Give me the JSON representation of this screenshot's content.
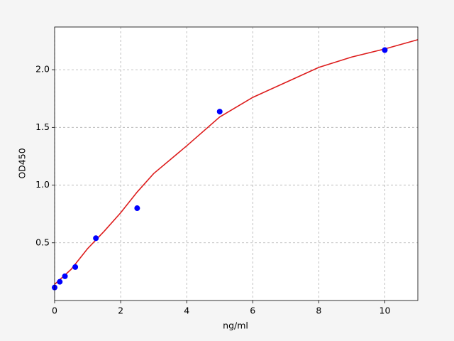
{
  "chart_data": {
    "type": "scatter",
    "xlabel": "ng/ml",
    "ylabel": "OD450",
    "xlim": [
      0,
      11
    ],
    "ylim": [
      0.0,
      2.37
    ],
    "xticks": [
      0,
      2,
      4,
      6,
      8,
      10
    ],
    "yticks": [
      0.5,
      {
        "value": 1.0,
        "label": "1.0"
      },
      1.5,
      {
        "value": 2.0,
        "label": "2.0"
      }
    ],
    "grid": true,
    "series": [
      {
        "type": "scatter",
        "color": "#0000ff",
        "x": [
          0,
          0.156,
          0.3125,
          0.625,
          1.25,
          2.5,
          5,
          10
        ],
        "values": [
          0.113,
          0.162,
          0.21,
          0.29,
          0.54,
          0.8,
          1.637,
          2.17
        ]
      },
      {
        "type": "line",
        "color": "#dd1c1c",
        "x": [
          0,
          0.5,
          1,
          1.5,
          2,
          2.5,
          3,
          4,
          5,
          6,
          7,
          8,
          9,
          10,
          11
        ],
        "values": [
          0.14,
          0.27,
          0.45,
          0.6,
          0.76,
          0.94,
          1.1,
          1.34,
          1.59,
          1.76,
          1.89,
          2.02,
          2.11,
          2.18,
          2.26
        ]
      }
    ]
  }
}
